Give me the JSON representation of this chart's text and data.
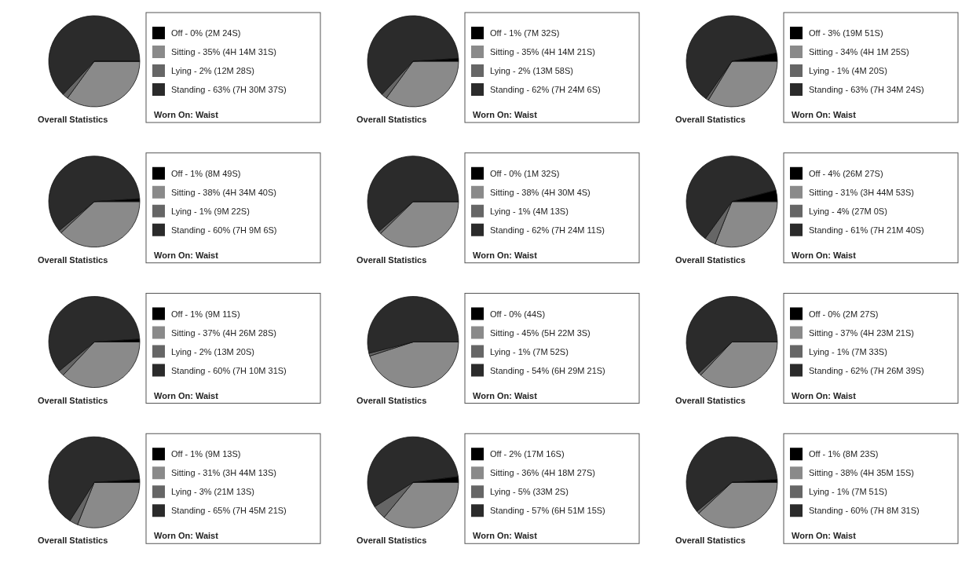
{
  "chart_data": [
    {
      "type": "pie",
      "title": "Overall Statistics",
      "legend_title": "Worn On: Waist",
      "legend": "right",
      "categories": [
        "Off - 0% (2M 24S)",
        "Sitting - 35% (4H 14M 31S)",
        "Lying - 2% (12M 28S)",
        "Standing - 63% (7H 30M 37S)"
      ],
      "values": [
        0,
        35,
        2,
        63
      ],
      "colors": [
        "#000000",
        "#8a8a8a",
        "#666666",
        "#2b2b2b"
      ]
    },
    {
      "type": "pie",
      "title": "Overall Statistics",
      "legend_title": "Worn On: Waist",
      "legend": "right",
      "categories": [
        "Off - 1% (7M 32S)",
        "Sitting - 35% (4H 14M 21S)",
        "Lying - 2% (13M 58S)",
        "Standing - 62% (7H 24M 6S)"
      ],
      "values": [
        1,
        35,
        2,
        62
      ],
      "colors": [
        "#000000",
        "#8a8a8a",
        "#666666",
        "#2b2b2b"
      ]
    },
    {
      "type": "pie",
      "title": "Overall Statistics",
      "legend_title": "Worn On: Waist",
      "legend": "right",
      "categories": [
        "Off - 3% (19M 51S)",
        "Sitting - 34% (4H 1M 25S)",
        "Lying - 1% (4M 20S)",
        "Standing - 63% (7H 34M 24S)"
      ],
      "values": [
        3,
        34,
        1,
        63
      ],
      "colors": [
        "#000000",
        "#8a8a8a",
        "#666666",
        "#2b2b2b"
      ]
    },
    {
      "type": "pie",
      "title": "Overall Statistics",
      "legend_title": "Worn On: Waist",
      "legend": "right",
      "categories": [
        "Off - 1% (8M 49S)",
        "Sitting - 38% (4H 34M 40S)",
        "Lying - 1% (9M 22S)",
        "Standing - 60% (7H 9M 6S)"
      ],
      "values": [
        1,
        38,
        1,
        60
      ],
      "colors": [
        "#000000",
        "#8a8a8a",
        "#666666",
        "#2b2b2b"
      ]
    },
    {
      "type": "pie",
      "title": "Overall Statistics",
      "legend_title": "Worn On: Waist",
      "legend": "right",
      "categories": [
        "Off - 0% (1M 32S)",
        "Sitting - 38% (4H 30M 4S)",
        "Lying - 1% (4M 13S)",
        "Standing - 62% (7H 24M 11S)"
      ],
      "values": [
        0,
        38,
        1,
        62
      ],
      "colors": [
        "#000000",
        "#8a8a8a",
        "#666666",
        "#2b2b2b"
      ]
    },
    {
      "type": "pie",
      "title": "Overall Statistics",
      "legend_title": "Worn On: Waist",
      "legend": "right",
      "categories": [
        "Off - 4% (26M 27S)",
        "Sitting - 31% (3H 44M 53S)",
        "Lying - 4% (27M 0S)",
        "Standing - 61% (7H 21M 40S)"
      ],
      "values": [
        4,
        31,
        4,
        61
      ],
      "colors": [
        "#000000",
        "#8a8a8a",
        "#666666",
        "#2b2b2b"
      ]
    },
    {
      "type": "pie",
      "title": "Overall Statistics",
      "legend_title": "Worn On: Waist",
      "legend": "right",
      "categories": [
        "Off - 1% (9M 11S)",
        "Sitting - 37% (4H 26M 28S)",
        "Lying - 2% (13M 20S)",
        "Standing - 60% (7H 10M 31S)"
      ],
      "values": [
        1,
        37,
        2,
        60
      ],
      "colors": [
        "#000000",
        "#8a8a8a",
        "#666666",
        "#2b2b2b"
      ]
    },
    {
      "type": "pie",
      "title": "Overall Statistics",
      "legend_title": "Worn On: Waist",
      "legend": "right",
      "categories": [
        "Off - 0% (44S)",
        "Sitting - 45% (5H 22M 3S)",
        "Lying - 1% (7M 52S)",
        "Standing - 54% (6H 29M 21S)"
      ],
      "values": [
        0,
        45,
        1,
        54
      ],
      "colors": [
        "#000000",
        "#8a8a8a",
        "#666666",
        "#2b2b2b"
      ]
    },
    {
      "type": "pie",
      "title": "Overall Statistics",
      "legend_title": "Worn On: Waist",
      "legend": "right",
      "categories": [
        "Off - 0% (2M 27S)",
        "Sitting - 37% (4H 23M 21S)",
        "Lying - 1% (7M 33S)",
        "Standing - 62% (7H 26M 39S)"
      ],
      "values": [
        0,
        37,
        1,
        62
      ],
      "colors": [
        "#000000",
        "#8a8a8a",
        "#666666",
        "#2b2b2b"
      ]
    },
    {
      "type": "pie",
      "title": "Overall Statistics",
      "legend_title": "Worn On: Waist",
      "legend": "right",
      "categories": [
        "Off - 1% (9M 13S)",
        "Sitting - 31% (3H 44M 13S)",
        "Lying - 3% (21M 13S)",
        "Standing - 65% (7H 45M 21S)"
      ],
      "values": [
        1,
        31,
        3,
        65
      ],
      "colors": [
        "#000000",
        "#8a8a8a",
        "#666666",
        "#2b2b2b"
      ]
    },
    {
      "type": "pie",
      "title": "Overall Statistics",
      "legend_title": "Worn On: Waist",
      "legend": "right",
      "categories": [
        "Off - 2% (17M 16S)",
        "Sitting - 36% (4H 18M 27S)",
        "Lying - 5% (33M 2S)",
        "Standing - 57% (6H 51M 15S)"
      ],
      "values": [
        2,
        36,
        5,
        57
      ],
      "colors": [
        "#000000",
        "#8a8a8a",
        "#666666",
        "#2b2b2b"
      ]
    },
    {
      "type": "pie",
      "title": "Overall Statistics",
      "legend_title": "Worn On: Waist",
      "legend": "right",
      "categories": [
        "Off - 1% (8M 23S)",
        "Sitting - 38% (4H 35M 15S)",
        "Lying - 1% (7M 51S)",
        "Standing - 60% (7H 8M 31S)"
      ],
      "values": [
        1,
        38,
        1,
        60
      ],
      "colors": [
        "#000000",
        "#8a8a8a",
        "#666666",
        "#2b2b2b"
      ]
    }
  ]
}
